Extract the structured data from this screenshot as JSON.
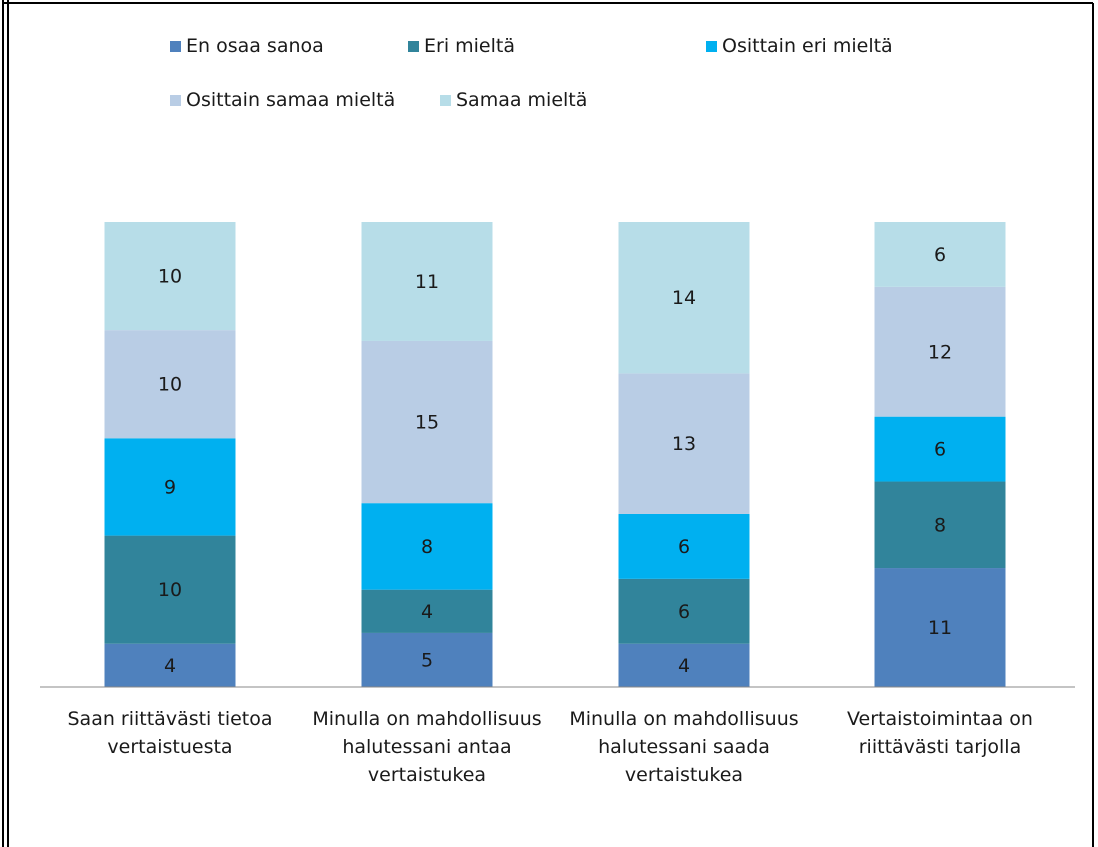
{
  "chart_data": {
    "type": "stacked_bar",
    "categories": [
      "Saan riittävästi tietoa vertaistuesta",
      "Minulla on mahdollisuus halutessani antaa vertaistukea",
      "Minulla on mahdollisuus halutessani saada vertaistukea",
      "Vertaistoimintaa on riittävästi tarjolla"
    ],
    "series": [
      {
        "name": "En osaa sanoa",
        "color": "#4f81bd",
        "values": [
          4,
          5,
          4,
          11
        ]
      },
      {
        "name": "Eri mieltä",
        "color": "#31849b",
        "values": [
          10,
          4,
          6,
          8
        ]
      },
      {
        "name": "Osittain eri mieltä",
        "color": "#00b0f0",
        "values": [
          9,
          8,
          6,
          6
        ]
      },
      {
        "name": "Osittain samaa mieltä",
        "color": "#b9cde5",
        "values": [
          10,
          15,
          13,
          12
        ]
      },
      {
        "name": "Samaa mieltä",
        "color": "#b7dde8",
        "values": [
          10,
          11,
          14,
          6
        ]
      }
    ],
    "legend": "top"
  }
}
